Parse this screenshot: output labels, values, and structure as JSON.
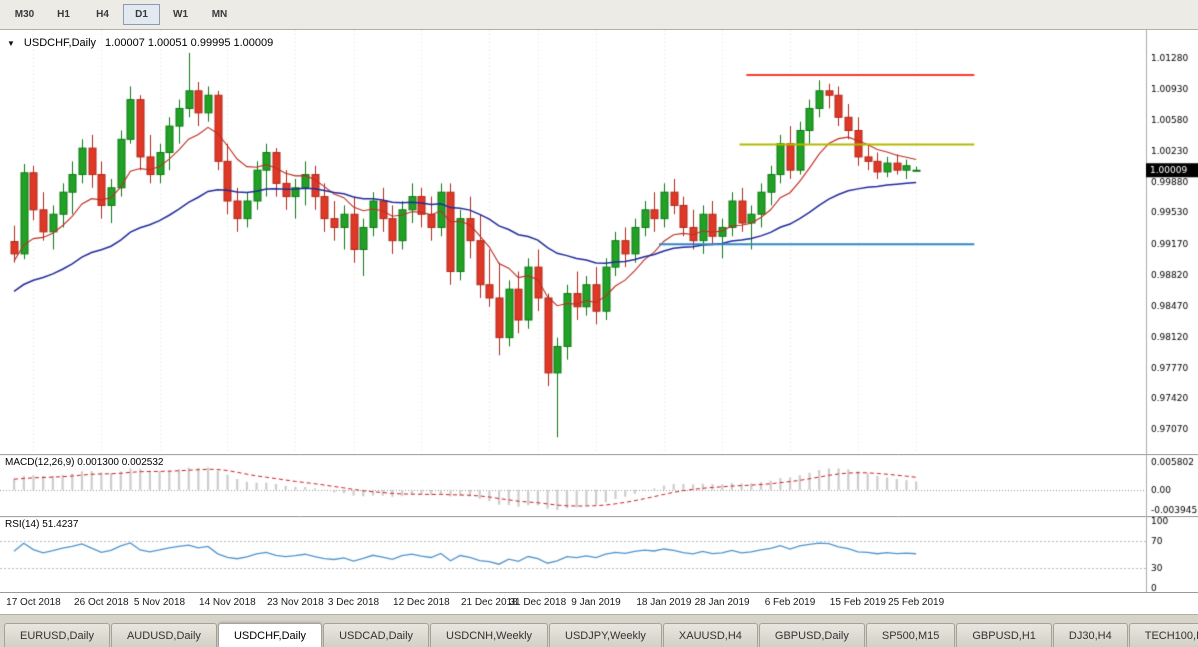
{
  "toolbar": {
    "timeframes": [
      {
        "label": "M30",
        "active": false
      },
      {
        "label": "H1",
        "active": false
      },
      {
        "label": "H4",
        "active": false
      },
      {
        "label": "D1",
        "active": true
      },
      {
        "label": "W1",
        "active": false
      },
      {
        "label": "MN",
        "active": false
      }
    ]
  },
  "chart": {
    "info_symbol": "USDCHF,Daily",
    "info_ohlc": "1.00007 1.00051 0.99995 1.00009",
    "current_price": "1.00009",
    "price_axis": [
      "1.01280",
      "1.00930",
      "1.00580",
      "1.00230",
      "0.99880",
      "0.99530",
      "0.99170",
      "0.98820",
      "0.98470",
      "0.98120",
      "0.97770",
      "0.97420",
      "0.97070"
    ]
  },
  "macd": {
    "label": "MACD(12,26,9) 0.001300 0.002532"
  },
  "rsi": {
    "label": "RSI(14) 51.4237"
  },
  "colors": {
    "candle_up": "#21a126",
    "candle_up_edge": "#0e7a14",
    "candle_down": "#df3826",
    "candle_down_edge": "#b02a1c",
    "ma_fast": "#bf2e24",
    "ma_slow": "#232b9b",
    "macd_hist": "#cdcdcd",
    "macd_signal": "#cf1f1f",
    "rsi_line": "#4f94cd",
    "price_tag_bg": "#000000",
    "price_tag_text": "#ffffff",
    "grid": "#e7e7e7",
    "axis_line": "#adadad",
    "separator": "#9a9a9a"
  },
  "chart_data": {
    "type": "candlestick",
    "symbol": "USDCHF",
    "timeframe": "Daily",
    "price_range": [
      0.9679,
      1.016
    ],
    "candles": [
      [
        0.992,
        0.9938,
        0.9896,
        0.9906
      ],
      [
        0.9906,
        1.0008,
        0.99,
        0.9998
      ],
      [
        0.9998,
        1.0006,
        0.9944,
        0.9956
      ],
      [
        0.9956,
        0.9976,
        0.9921,
        0.9931
      ],
      [
        0.9931,
        0.9961,
        0.9911,
        0.9951
      ],
      [
        0.9951,
        0.9986,
        0.9936,
        0.9976
      ],
      [
        0.9976,
        1.0011,
        0.9951,
        0.9996
      ],
      [
        0.9996,
        1.0036,
        0.9986,
        1.0026
      ],
      [
        1.0026,
        1.0041,
        0.9981,
        0.9996
      ],
      [
        0.9996,
        1.0011,
        0.9946,
        0.9961
      ],
      [
        0.9961,
        0.9991,
        0.9941,
        0.9981
      ],
      [
        0.9981,
        1.0046,
        0.9971,
        1.0036
      ],
      [
        1.0036,
        1.0096,
        1.0031,
        1.0081
      ],
      [
        1.0081,
        1.0086,
        1.0001,
        1.0016
      ],
      [
        1.0016,
        1.0041,
        0.9986,
        0.9996
      ],
      [
        0.9996,
        1.0031,
        0.9986,
        1.0021
      ],
      [
        1.0021,
        1.0061,
        1.0001,
        1.0051
      ],
      [
        1.0051,
        1.0081,
        1.0031,
        1.0071
      ],
      [
        1.0071,
        1.0134,
        1.0061,
        1.0091
      ],
      [
        1.0091,
        1.0101,
        1.0051,
        1.0066
      ],
      [
        1.0066,
        1.0096,
        1.0056,
        1.0086
      ],
      [
        1.0086,
        1.0091,
        1.0001,
        1.0011
      ],
      [
        1.0011,
        1.0031,
        0.9951,
        0.9966
      ],
      [
        0.9966,
        0.9981,
        0.9931,
        0.9946
      ],
      [
        0.9946,
        0.9976,
        0.9936,
        0.9966
      ],
      [
        0.9966,
        1.0011,
        0.9956,
        1.0001
      ],
      [
        1.0001,
        1.0031,
        0.9971,
        1.0021
      ],
      [
        1.0021,
        1.0026,
        0.9971,
        0.9986
      ],
      [
        0.9986,
        1.0001,
        0.9956,
        0.9971
      ],
      [
        0.9971,
        0.9991,
        0.9946,
        0.9981
      ],
      [
        0.9981,
        1.0011,
        0.9961,
        0.9996
      ],
      [
        0.9996,
        1.0006,
        0.9956,
        0.9971
      ],
      [
        0.9971,
        0.9986,
        0.9931,
        0.9946
      ],
      [
        0.9946,
        0.9966,
        0.9921,
        0.9936
      ],
      [
        0.9936,
        0.9961,
        0.9911,
        0.9951
      ],
      [
        0.9951,
        0.9971,
        0.9896,
        0.9911
      ],
      [
        0.9911,
        0.9946,
        0.9881,
        0.9936
      ],
      [
        0.9936,
        0.9976,
        0.9926,
        0.9966
      ],
      [
        0.9966,
        0.9981,
        0.9931,
        0.9946
      ],
      [
        0.9946,
        0.9961,
        0.9906,
        0.9921
      ],
      [
        0.9921,
        0.9966,
        0.9911,
        0.9956
      ],
      [
        0.9956,
        0.9986,
        0.9941,
        0.9971
      ],
      [
        0.9971,
        0.9981,
        0.9936,
        0.9951
      ],
      [
        0.9951,
        0.9971,
        0.9921,
        0.9936
      ],
      [
        0.9936,
        0.9986,
        0.9926,
        0.9976
      ],
      [
        0.9976,
        0.9986,
        0.9871,
        0.9886
      ],
      [
        0.9886,
        0.9956,
        0.9876,
        0.9946
      ],
      [
        0.9946,
        0.9971,
        0.9901,
        0.9921
      ],
      [
        0.9921,
        0.9951,
        0.9856,
        0.9871
      ],
      [
        0.9871,
        0.9911,
        0.9846,
        0.9856
      ],
      [
        0.9856,
        0.9896,
        0.9791,
        0.9811
      ],
      [
        0.9811,
        0.9876,
        0.9801,
        0.9866
      ],
      [
        0.9866,
        0.9886,
        0.9816,
        0.9831
      ],
      [
        0.9831,
        0.9901,
        0.9821,
        0.9891
      ],
      [
        0.9891,
        0.9911,
        0.9841,
        0.9856
      ],
      [
        0.9856,
        0.9861,
        0.9756,
        0.9771
      ],
      [
        0.9771,
        0.9811,
        0.9698,
        0.9801
      ],
      [
        0.9801,
        0.9871,
        0.9786,
        0.9861
      ],
      [
        0.9861,
        0.9886,
        0.9831,
        0.9846
      ],
      [
        0.9846,
        0.9881,
        0.9836,
        0.9871
      ],
      [
        0.9871,
        0.9891,
        0.9826,
        0.9841
      ],
      [
        0.9841,
        0.9901,
        0.9831,
        0.9891
      ],
      [
        0.9891,
        0.9931,
        0.9881,
        0.9921
      ],
      [
        0.9921,
        0.9936,
        0.9891,
        0.9906
      ],
      [
        0.9906,
        0.9946,
        0.9896,
        0.9936
      ],
      [
        0.9936,
        0.9966,
        0.9926,
        0.9956
      ],
      [
        0.9956,
        0.9976,
        0.9931,
        0.9946
      ],
      [
        0.9946,
        0.9986,
        0.9936,
        0.9976
      ],
      [
        0.9976,
        0.9991,
        0.9951,
        0.9961
      ],
      [
        0.9961,
        0.9971,
        0.9926,
        0.9936
      ],
      [
        0.9936,
        0.9956,
        0.9911,
        0.9921
      ],
      [
        0.9921,
        0.9961,
        0.9906,
        0.9951
      ],
      [
        0.9951,
        0.9966,
        0.9916,
        0.9926
      ],
      [
        0.9926,
        0.9946,
        0.9901,
        0.9936
      ],
      [
        0.9936,
        0.9976,
        0.9926,
        0.9966
      ],
      [
        0.9966,
        0.9981,
        0.9931,
        0.9941
      ],
      [
        0.9941,
        0.9961,
        0.9911,
        0.9951
      ],
      [
        0.9951,
        0.9986,
        0.9936,
        0.9976
      ],
      [
        0.9976,
        1.0006,
        0.9961,
        0.9996
      ],
      [
        0.9996,
        1.0041,
        0.9986,
        1.0031
      ],
      [
        1.0031,
        1.0051,
        0.9991,
        1.0001
      ],
      [
        1.0001,
        1.0056,
        0.9996,
        1.0046
      ],
      [
        1.0046,
        1.0081,
        1.0031,
        1.0071
      ],
      [
        1.0071,
        1.0103,
        1.0061,
        1.0091
      ],
      [
        1.0091,
        1.0099,
        1.0071,
        1.0086
      ],
      [
        1.0086,
        1.0096,
        1.0051,
        1.0061
      ],
      [
        1.0061,
        1.0076,
        1.0036,
        1.0046
      ],
      [
        1.0046,
        1.0061,
        1.0006,
        1.0016
      ],
      [
        1.0016,
        1.0031,
        1.0001,
        1.0011
      ],
      [
        1.0011,
        1.0021,
        0.9991,
        0.9999
      ],
      [
        0.9999,
        1.0016,
        0.9993,
        1.0009
      ],
      [
        1.0009,
        1.0019,
        0.9996,
        1.0001
      ],
      [
        1.0001,
        1.0013,
        0.9991,
        1.0006
      ],
      [
        1.00007,
        1.00051,
        0.99995,
        1.00009
      ]
    ],
    "ticks": [
      {
        "i": 2,
        "label": "17 Oct 2018"
      },
      {
        "i": 9,
        "label": "26 Oct 2018"
      },
      {
        "i": 15,
        "label": "5 Nov 2018"
      },
      {
        "i": 22,
        "label": "14 Nov 2018"
      },
      {
        "i": 29,
        "label": "23 Nov 2018"
      },
      {
        "i": 35,
        "label": "3 Dec 2018"
      },
      {
        "i": 42,
        "label": "12 Dec 2018"
      },
      {
        "i": 49,
        "label": "21 Dec 2018"
      },
      {
        "i": 54,
        "label": "31 Dec 2018"
      },
      {
        "i": 60,
        "label": "9 Jan 2019"
      },
      {
        "i": 67,
        "label": "18 Jan 2019"
      },
      {
        "i": 73,
        "label": "28 Jan 2019"
      },
      {
        "i": 80,
        "label": "6 Feb 2019"
      },
      {
        "i": 87,
        "label": "15 Feb 2019"
      },
      {
        "i": 93,
        "label": "25 Feb 2019"
      }
    ],
    "overlays": {
      "ma_fast": {
        "type": "ema",
        "period": 10
      },
      "ma_slow": {
        "type": "ema",
        "period": 34
      },
      "hlines": [
        {
          "price": 1.0109,
          "i0": 75.5,
          "i1": 99.0,
          "color": "#ff3a2d",
          "width": 2
        },
        {
          "price": 1.003,
          "i0": 74.8,
          "i1": 99.0,
          "color": "#b4b800",
          "width": 2
        },
        {
          "price": 0.9917,
          "i0": 66.5,
          "i1": 99.0,
          "color": "#2f86c8",
          "width": 2
        }
      ]
    },
    "indicators": {
      "macd": {
        "fast": 12,
        "slow": 26,
        "signal": 9,
        "range": [
          -0.00435,
          0.00625
        ],
        "axis_labels": [
          "0.005802",
          "0.00",
          "-0.003945"
        ]
      },
      "rsi": {
        "period": 14,
        "range": [
          0,
          100
        ],
        "levels": [
          70,
          30
        ],
        "axis_labels": [
          "100",
          "70",
          "30",
          "0"
        ]
      }
    }
  },
  "tabs": [
    {
      "label": "EURUSD,Daily",
      "active": false
    },
    {
      "label": "AUDUSD,Daily",
      "active": false
    },
    {
      "label": "USDCHF,Daily",
      "active": true
    },
    {
      "label": "USDCAD,Daily",
      "active": false
    },
    {
      "label": "USDCNH,Weekly",
      "active": false
    },
    {
      "label": "USDJPY,Weekly",
      "active": false
    },
    {
      "label": "XAUUSD,H4",
      "active": false
    },
    {
      "label": "GBPUSD,Daily",
      "active": false
    },
    {
      "label": "SP500,M15",
      "active": false
    },
    {
      "label": "GBPUSD,H1",
      "active": false
    },
    {
      "label": "DJ30,H4",
      "active": false
    },
    {
      "label": "TECH100,H4",
      "active": false
    }
  ]
}
